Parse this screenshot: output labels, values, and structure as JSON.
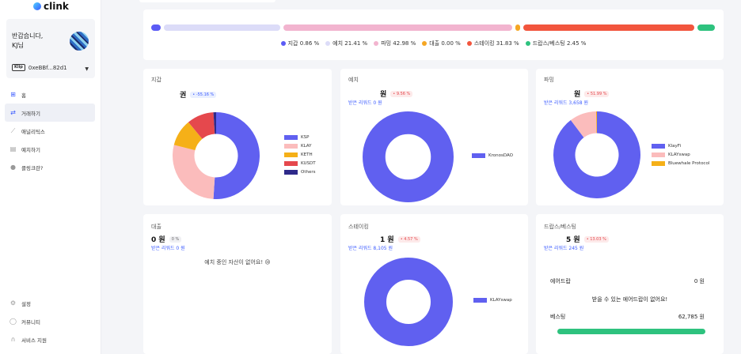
{
  "app": {
    "name": "clink"
  },
  "profile": {
    "greeting_line1": "반갑습니다,",
    "greeting_line2": "KJ님",
    "wallet_badge": "Klip",
    "wallet_address": "0xeBBf...82d1"
  },
  "nav": [
    {
      "label": "홈",
      "icon": "grid-icon"
    },
    {
      "label": "거래하기",
      "icon": "exchange-icon"
    },
    {
      "label": "애널리틱스",
      "icon": "analytics-icon"
    },
    {
      "label": "예치하기",
      "icon": "deposit-icon"
    },
    {
      "label": "클링크란?",
      "icon": "info-icon"
    }
  ],
  "bottom_nav": [
    {
      "label": "설정",
      "icon": "gear-icon"
    },
    {
      "label": "커뮤니티",
      "icon": "chat-icon"
    },
    {
      "label": "서비스 지원",
      "icon": "headset-icon"
    }
  ],
  "summary": {
    "segments": [
      {
        "label": "지갑",
        "percent": 0.86,
        "percent_text": "0.86 %",
        "color": "#5b5bf5"
      },
      {
        "label": "예치",
        "percent": 21.41,
        "percent_text": "21.41 %",
        "color": "#dcdcf8"
      },
      {
        "label": "파밍",
        "percent": 42.98,
        "percent_text": "42.98 %",
        "color": "#f2b4cf"
      },
      {
        "label": "대출",
        "percent": 0.0,
        "percent_text": "0.00 %",
        "color": "#f5a623"
      },
      {
        "label": "스테이킹",
        "percent": 31.83,
        "percent_text": "31.83 %",
        "color": "#f2553d"
      },
      {
        "label": "드랍스/베스팅",
        "percent": 2.45,
        "percent_text": "2.45 %",
        "color": "#2ec27e"
      }
    ]
  },
  "wallet_panel": {
    "title": "지갑",
    "amount": "권",
    "change": "• -55.16 %",
    "chart_data": {
      "type": "pie",
      "categories": [
        "KSP",
        "KLAY",
        "KETH",
        "KUSDT",
        "Others"
      ],
      "values": [
        51,
        28,
        10,
        10,
        1
      ],
      "colors": [
        "#6060f0",
        "#fbbcbc",
        "#f5b018",
        "#e5484d",
        "#2e2a8a"
      ]
    }
  },
  "deposit_panel": {
    "title": "예치",
    "amount": "원",
    "change": "• 9.56 %",
    "reward": "받은 리워드 0 원",
    "chart_data": {
      "type": "pie",
      "categories": [
        "KronosDAO"
      ],
      "values": [
        100
      ],
      "colors": [
        "#6060f0"
      ]
    }
  },
  "farming_panel": {
    "title": "파밍",
    "amount": "원",
    "change": "• 51.99 %",
    "reward": "받은 리워드 3,658 원",
    "chart_data": {
      "type": "pie",
      "categories": [
        "KlayFi",
        "KLAYswap",
        "Bluewhale Protocol"
      ],
      "values": [
        90,
        10,
        0.3
      ],
      "colors": [
        "#6060f0",
        "#fbbcbc",
        "#f5b018"
      ]
    }
  },
  "loan_panel": {
    "title": "대출",
    "amount": "0 원",
    "change": "0 %",
    "reward": "받은 리워드 0 원",
    "empty_message": "예치 중인 자산이 없어요! 😢"
  },
  "staking_panel": {
    "title": "스테이킹",
    "amount": "1 원",
    "change": "• 4.57 %",
    "reward": "받은 리워드 8,105 원",
    "chart_data": {
      "type": "pie",
      "categories": [
        "KLAYswap"
      ],
      "values": [
        100
      ],
      "colors": [
        "#6060f0"
      ]
    }
  },
  "drops_panel": {
    "title": "드랍스/베스팅",
    "amount": "5 원",
    "change": "• 13.03 %",
    "reward": "받은 리워드 245 원",
    "airdrop_label": "에어드랍",
    "airdrop_value": "0 원",
    "airdrop_empty": "받을 수 있는 에어드랍이 없어요!",
    "vesting_label": "베스팅",
    "vesting_value": "62,785 원"
  }
}
